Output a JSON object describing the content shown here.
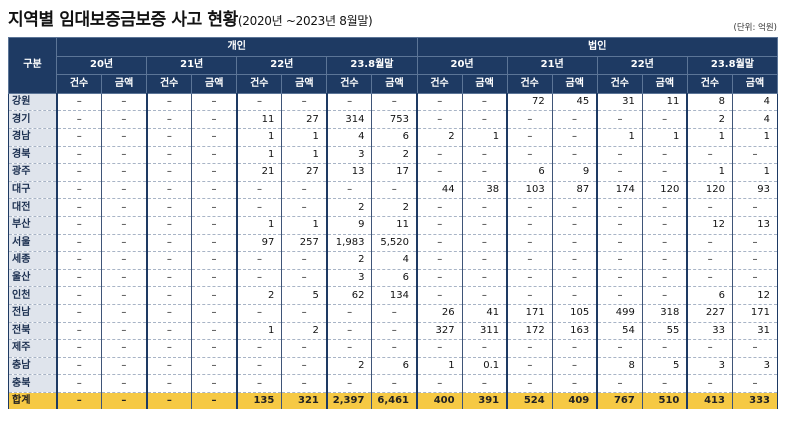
{
  "title": "지역별 임대보증금보증 사고 현황",
  "subtitle": "(2020년 ~2023년 8월말)",
  "unit": "(단위: 억원)",
  "header": {
    "row_label": "구분",
    "groups": [
      "개인",
      "법인"
    ],
    "periods": [
      "20년",
      "21년",
      "22년",
      "23.8월말"
    ],
    "metrics": [
      "건수",
      "금액"
    ]
  },
  "rows": [
    {
      "region": "강원",
      "values": [
        "–",
        "–",
        "–",
        "–",
        "–",
        "–",
        "–",
        "–",
        "–",
        "–",
        "72",
        "45",
        "31",
        "11",
        "8",
        "4"
      ]
    },
    {
      "region": "경기",
      "values": [
        "–",
        "–",
        "–",
        "–",
        "11",
        "27",
        "314",
        "753",
        "–",
        "–",
        "–",
        "–",
        "–",
        "–",
        "2",
        "4"
      ]
    },
    {
      "region": "경남",
      "values": [
        "–",
        "–",
        "–",
        "–",
        "1",
        "1",
        "4",
        "6",
        "2",
        "1",
        "–",
        "–",
        "1",
        "1",
        "1",
        "1"
      ]
    },
    {
      "region": "경북",
      "values": [
        "–",
        "–",
        "–",
        "–",
        "1",
        "1",
        "3",
        "2",
        "–",
        "–",
        "–",
        "–",
        "–",
        "–",
        "–",
        "–"
      ]
    },
    {
      "region": "광주",
      "values": [
        "–",
        "–",
        "–",
        "–",
        "21",
        "27",
        "13",
        "17",
        "–",
        "–",
        "6",
        "9",
        "–",
        "–",
        "1",
        "1"
      ]
    },
    {
      "region": "대구",
      "values": [
        "–",
        "–",
        "–",
        "–",
        "–",
        "–",
        "–",
        "–",
        "44",
        "38",
        "103",
        "87",
        "174",
        "120",
        "120",
        "93"
      ]
    },
    {
      "region": "대전",
      "values": [
        "–",
        "–",
        "–",
        "–",
        "–",
        "–",
        "2",
        "2",
        "–",
        "–",
        "–",
        "–",
        "–",
        "–",
        "–",
        "–"
      ]
    },
    {
      "region": "부산",
      "values": [
        "–",
        "–",
        "–",
        "–",
        "1",
        "1",
        "9",
        "11",
        "–",
        "–",
        "–",
        "–",
        "–",
        "–",
        "12",
        "13"
      ]
    },
    {
      "region": "서울",
      "values": [
        "–",
        "–",
        "–",
        "–",
        "97",
        "257",
        "1,983",
        "5,520",
        "–",
        "–",
        "–",
        "–",
        "–",
        "–",
        "–",
        "–"
      ]
    },
    {
      "region": "세종",
      "values": [
        "–",
        "–",
        "–",
        "–",
        "–",
        "–",
        "2",
        "4",
        "–",
        "–",
        "–",
        "–",
        "–",
        "–",
        "–",
        "–"
      ]
    },
    {
      "region": "울산",
      "values": [
        "–",
        "–",
        "–",
        "–",
        "–",
        "–",
        "3",
        "6",
        "–",
        "–",
        "–",
        "–",
        "–",
        "–",
        "–",
        "–"
      ]
    },
    {
      "region": "인천",
      "values": [
        "–",
        "–",
        "–",
        "–",
        "2",
        "5",
        "62",
        "134",
        "–",
        "–",
        "–",
        "–",
        "–",
        "–",
        "6",
        "12"
      ]
    },
    {
      "region": "전남",
      "values": [
        "–",
        "–",
        "–",
        "–",
        "–",
        "–",
        "–",
        "–",
        "26",
        "41",
        "171",
        "105",
        "499",
        "318",
        "227",
        "171"
      ]
    },
    {
      "region": "전북",
      "values": [
        "–",
        "–",
        "–",
        "–",
        "1",
        "2",
        "–",
        "–",
        "327",
        "311",
        "172",
        "163",
        "54",
        "55",
        "33",
        "31"
      ]
    },
    {
      "region": "제주",
      "values": [
        "–",
        "–",
        "–",
        "–",
        "–",
        "–",
        "–",
        "–",
        "–",
        "–",
        "–",
        "–",
        "–",
        "–",
        "–",
        "–"
      ]
    },
    {
      "region": "충남",
      "values": [
        "–",
        "–",
        "–",
        "–",
        "–",
        "–",
        "2",
        "6",
        "1",
        "0.1",
        "–",
        "–",
        "8",
        "5",
        "3",
        "3"
      ]
    },
    {
      "region": "충북",
      "values": [
        "–",
        "–",
        "–",
        "–",
        "–",
        "–",
        "–",
        "–",
        "–",
        "–",
        "–",
        "–",
        "–",
        "–",
        "–",
        "–"
      ]
    }
  ],
  "total": {
    "region": "합계",
    "values": [
      "–",
      "–",
      "–",
      "–",
      "135",
      "321",
      "2,397",
      "6,461",
      "400",
      "391",
      "524",
      "409",
      "767",
      "510",
      "413",
      "333"
    ]
  },
  "colors": {
    "header_bg": "#1e3a63",
    "region_bg": "#dfe4ec",
    "total_bg": "#f6c944"
  }
}
